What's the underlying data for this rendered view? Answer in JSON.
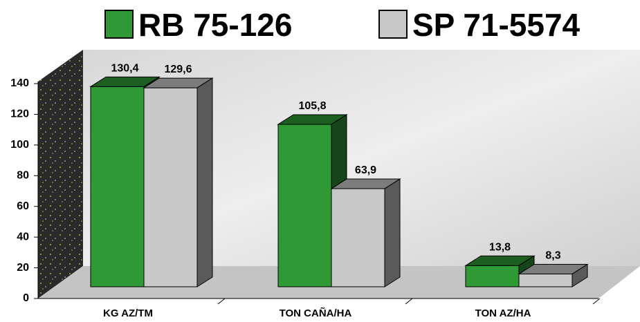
{
  "chart_data": {
    "type": "bar3d",
    "categories": [
      "KG AZ/TM",
      "TON CAÑA/HA",
      "TON AZ/HA"
    ],
    "series": [
      {
        "name": "RB 75-126",
        "color": "#2f9a35",
        "values": [
          130.4,
          105.8,
          13.8
        ],
        "value_labels": [
          "130,4",
          "105,8",
          "13,8"
        ]
      },
      {
        "name": "SP 71-5574",
        "color": "#c8c8c8",
        "values": [
          129.6,
          63.9,
          8.3
        ],
        "value_labels": [
          "129,6",
          "63,9",
          "8,3"
        ]
      }
    ],
    "ylim": [
      0,
      140
    ],
    "yticks": [
      0,
      20,
      40,
      60,
      80,
      100,
      120,
      140
    ]
  }
}
